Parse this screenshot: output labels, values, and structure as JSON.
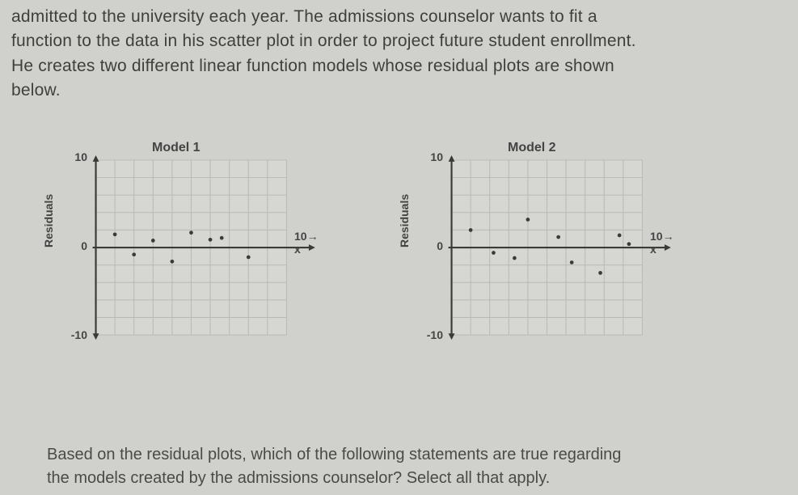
{
  "intro": {
    "line1": "admitted to the university each year. The admissions counselor wants to fit a",
    "line2": "function to the data in his scatter plot in order to project future student enrollment.",
    "line3": "He creates two different linear function models whose residual plots are shown",
    "line4": "below."
  },
  "question": {
    "line1": "Based on the residual plots, which of the following statements are true regarding",
    "line2": "the models created by the admissions counselor? Select all that apply."
  },
  "charts": {
    "model1": {
      "title": "Model 1",
      "y_axis_label": "Residuals",
      "x_end_label": "10→ x",
      "y_ticks": [
        {
          "value": "10",
          "frac": 0.0
        },
        {
          "value": "0",
          "frac": 0.5
        },
        {
          "value": "-10",
          "frac": 1.0
        }
      ],
      "xlim": [
        0,
        10
      ],
      "ylim": [
        -10,
        10
      ],
      "grid_color": "#b9b9b4",
      "axis_color": "#3a3a38",
      "background_color": "#d6d6d2",
      "point_color": "#3a3a38",
      "point_radius": 2.4,
      "points": [
        {
          "x": 1.0,
          "y": 1.5
        },
        {
          "x": 2.0,
          "y": -0.8
        },
        {
          "x": 3.0,
          "y": 0.8
        },
        {
          "x": 4.0,
          "y": -1.6
        },
        {
          "x": 5.0,
          "y": 1.7
        },
        {
          "x": 6.0,
          "y": 0.9
        },
        {
          "x": 6.6,
          "y": 1.1
        },
        {
          "x": 8.0,
          "y": -1.1
        }
      ]
    },
    "model2": {
      "title": "Model 2",
      "y_axis_label": "Residuals",
      "x_end_label": "10→ x",
      "y_ticks": [
        {
          "value": "10",
          "frac": 0.0
        },
        {
          "value": "0",
          "frac": 0.5
        },
        {
          "value": "-10",
          "frac": 1.0
        }
      ],
      "xlim": [
        0,
        10
      ],
      "ylim": [
        -10,
        10
      ],
      "grid_color": "#b9b9b4",
      "axis_color": "#3a3a38",
      "background_color": "#d6d6d2",
      "point_color": "#3a3a38",
      "point_radius": 2.4,
      "points": [
        {
          "x": 1.0,
          "y": 2.0
        },
        {
          "x": 2.2,
          "y": -0.6
        },
        {
          "x": 3.3,
          "y": -1.2
        },
        {
          "x": 4.0,
          "y": 3.2
        },
        {
          "x": 5.6,
          "y": 1.2
        },
        {
          "x": 6.3,
          "y": -1.7
        },
        {
          "x": 7.8,
          "y": -2.9
        },
        {
          "x": 8.8,
          "y": 1.4
        },
        {
          "x": 9.3,
          "y": 0.4
        }
      ]
    }
  }
}
